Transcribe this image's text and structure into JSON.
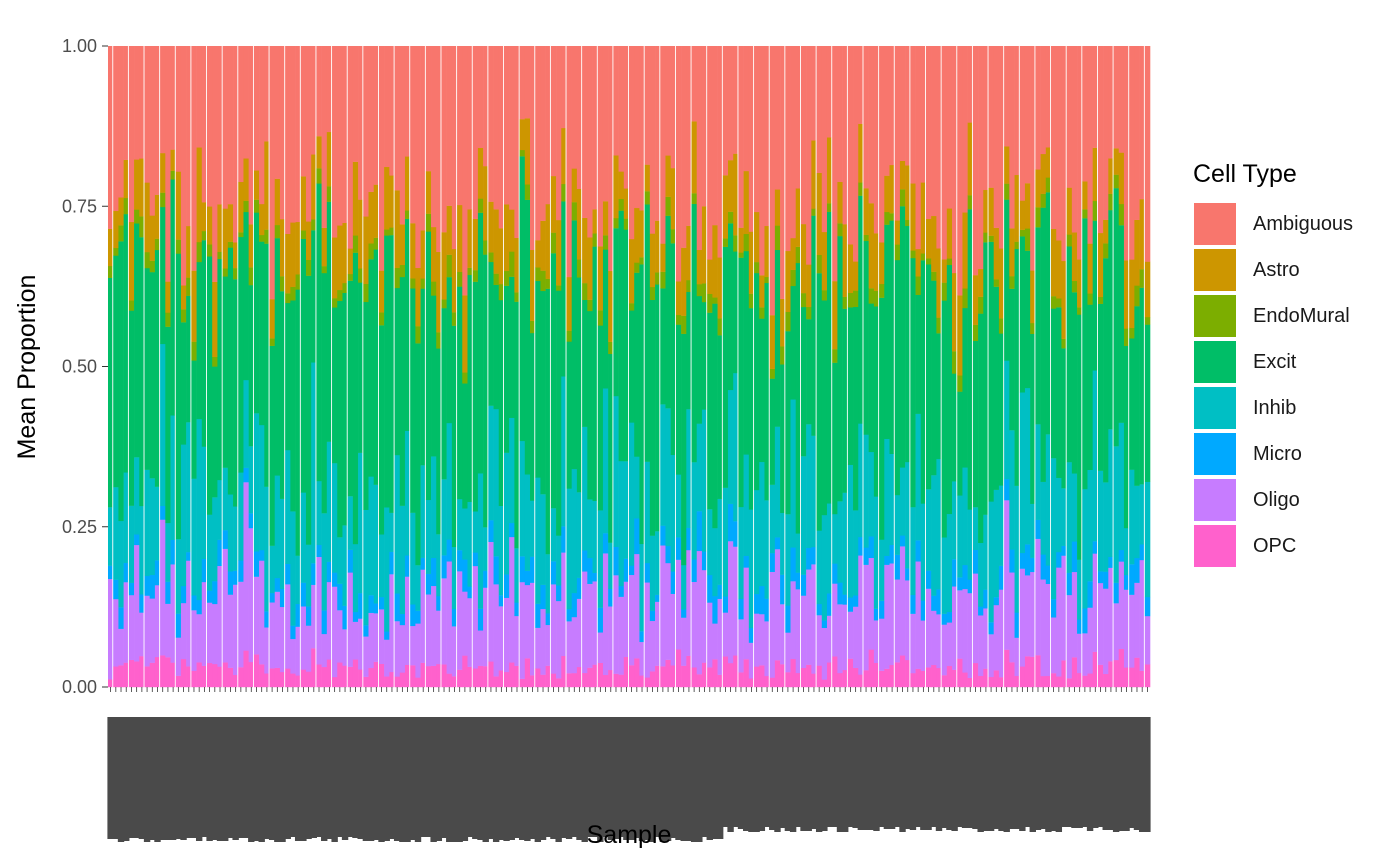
{
  "chart_data": {
    "type": "bar",
    "stacked": true,
    "xlabel": "Sample",
    "ylabel": "Mean Proportion",
    "ylim": [
      0,
      1
    ],
    "yticks": [
      "0.00",
      "0.25",
      "0.50",
      "0.75",
      "1.00"
    ],
    "ytick_values": [
      0,
      0.25,
      0.5,
      0.75,
      1
    ],
    "legend_title": "Cell Type",
    "legend_position": "right",
    "grid": false,
    "n_samples": 200,
    "series": [
      {
        "name": "OPC",
        "color": "#FF61CC",
        "mean": 0.03
      },
      {
        "name": "Oligo",
        "color": "#C77CFF",
        "mean": 0.12
      },
      {
        "name": "Micro",
        "color": "#00A9FF",
        "mean": 0.03
      },
      {
        "name": "Inhib",
        "color": "#00BFC4",
        "mean": 0.15
      },
      {
        "name": "Excit",
        "color": "#00BE67",
        "mean": 0.32
      },
      {
        "name": "EndoMural",
        "color": "#7CAE00",
        "mean": 0.02
      },
      {
        "name": "Astro",
        "color": "#CD9600",
        "mean": 0.08
      },
      {
        "name": "Ambiguous",
        "color": "#F8766D",
        "mean": 0.25
      }
    ],
    "legend_order": [
      "Ambiguous",
      "Astro",
      "EndoMural",
      "Excit",
      "Inhib",
      "Micro",
      "Oligo",
      "OPC"
    ]
  }
}
